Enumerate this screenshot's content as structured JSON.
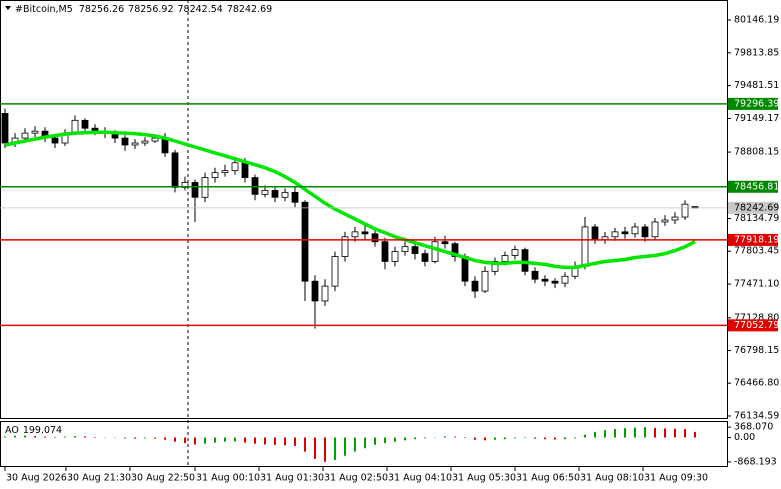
{
  "chart_data": [
    {
      "type": "candlestick",
      "title": "#Bitcoin,M5",
      "xticks": [
        {
          "value": 0,
          "label": "30 Aug 2026"
        },
        {
          "value": 6.1,
          "label": "30 Aug 21:30"
        },
        {
          "value": 12.5,
          "label": "30 Aug 22:50"
        },
        {
          "value": 19,
          "label": "31 Aug 00:10"
        },
        {
          "value": 25.4,
          "label": "31 Aug 01:30"
        },
        {
          "value": 31.8,
          "label": "31 Aug 02:50"
        },
        {
          "value": 38.2,
          "label": "31 Aug 04:10"
        },
        {
          "value": 44.6,
          "label": "31 Aug 05:30"
        },
        {
          "value": 51,
          "label": "31 Aug 06:50"
        },
        {
          "value": 57.4,
          "label": "31 Aug 08:10"
        },
        {
          "value": 63.8,
          "label": "31 Aug 09:30"
        }
      ],
      "xlim": [
        -0.5,
        72.2
      ],
      "ylim": [
        76114,
        80349
      ],
      "yticks": [
        {
          "value": 80146.19,
          "label": "80146.19"
        },
        {
          "value": 79813.85,
          "label": "79813.85"
        },
        {
          "value": 79481.51,
          "label": "79481.51"
        },
        {
          "value": 79149.17,
          "label": "79149.17"
        },
        {
          "value": 78808.15,
          "label": "78808.15"
        },
        {
          "value": 78134.79,
          "label": "78134.79"
        },
        {
          "value": 77803.45,
          "label": "77803.45"
        },
        {
          "value": 77471.1,
          "label": "77471.10"
        },
        {
          "value": 77128.8,
          "label": "77128.80"
        },
        {
          "value": 76798.15,
          "label": "76798.15"
        },
        {
          "value": 76466.8,
          "label": "76466.80"
        },
        {
          "value": 76134.59,
          "label": "76134.59"
        }
      ],
      "open": [
        79200,
        78900,
        78950,
        79000,
        79020,
        78950,
        78900,
        79000,
        79130,
        79050,
        79020,
        79000,
        78950,
        78880,
        78900,
        78920,
        78950,
        78800,
        78450,
        78500,
        78350,
        78550,
        78600,
        78620,
        78700,
        78550,
        78380,
        78420,
        78350,
        78400,
        78300,
        77500,
        77300,
        77450,
        77750,
        77950,
        78000,
        77980,
        77900,
        77700,
        77800,
        77850,
        77780,
        77700,
        77900,
        77880,
        77750,
        77500,
        77400,
        77600,
        77700,
        77760,
        77820,
        77600,
        77520,
        77500,
        77480,
        77550,
        77650,
        78050,
        77920,
        77950,
        78000,
        77980,
        78050,
        77950,
        78100,
        78120,
        78150,
        78256.26
      ],
      "high": [
        79250,
        79000,
        79050,
        79070,
        79060,
        78990,
        79040,
        79180,
        79150,
        79090,
        79060,
        79030,
        78980,
        78940,
        78960,
        78990,
        79000,
        78830,
        78560,
        78530,
        78600,
        78650,
        78680,
        78760,
        78750,
        78580,
        78470,
        78450,
        78440,
        78450,
        78320,
        77560,
        77520,
        77800,
        78000,
        78050,
        78080,
        78020,
        77940,
        77850,
        77900,
        77880,
        77820,
        77950,
        77960,
        77900,
        77780,
        77550,
        77650,
        77740,
        77800,
        77860,
        77840,
        77640,
        77560,
        77530,
        77590,
        77700,
        78150,
        78080,
        78000,
        78040,
        78050,
        78090,
        78080,
        78140,
        78170,
        78200,
        78320,
        78256.92
      ],
      "low": [
        78850,
        78860,
        78920,
        78960,
        78910,
        78850,
        78870,
        78980,
        79000,
        78980,
        78950,
        78900,
        78820,
        78840,
        78870,
        78900,
        78760,
        78400,
        78420,
        78100,
        78300,
        78500,
        78560,
        78580,
        78500,
        78320,
        78350,
        78300,
        78310,
        78250,
        77300,
        77020,
        77250,
        77400,
        77700,
        77900,
        77920,
        77850,
        77620,
        77650,
        77760,
        77720,
        77650,
        77680,
        77830,
        77700,
        77450,
        77330,
        77380,
        77560,
        77660,
        77720,
        77560,
        77480,
        77450,
        77430,
        77440,
        77520,
        77620,
        77880,
        77880,
        77910,
        77930,
        77940,
        77900,
        77920,
        78060,
        78080,
        78120,
        78242.54
      ],
      "close": [
        78900,
        78950,
        79000,
        79020,
        78950,
        78900,
        79000,
        79130,
        79050,
        79020,
        79000,
        78950,
        78880,
        78900,
        78920,
        78950,
        78800,
        78450,
        78500,
        78350,
        78550,
        78600,
        78620,
        78700,
        78550,
        78380,
        78420,
        78350,
        78400,
        78300,
        77500,
        77300,
        77450,
        77750,
        77950,
        78000,
        77980,
        77900,
        77700,
        77800,
        77850,
        77780,
        77700,
        77900,
        77880,
        77750,
        77500,
        77400,
        77600,
        77700,
        77760,
        77820,
        77600,
        77520,
        77500,
        77480,
        77550,
        77650,
        78050,
        77920,
        77950,
        78000,
        77980,
        78050,
        77950,
        78100,
        78120,
        78150,
        78280,
        78242.69
      ],
      "ma": {
        "color": "#00e600",
        "values": [
          78880,
          78900,
          78920,
          78940,
          78960,
          78975,
          78990,
          79000,
          79005,
          79010,
          79010,
          79005,
          79000,
          78995,
          78985,
          78970,
          78950,
          78920,
          78890,
          78860,
          78830,
          78800,
          78770,
          78740,
          78710,
          78680,
          78650,
          78610,
          78560,
          78500,
          78430,
          78360,
          78290,
          78230,
          78180,
          78130,
          78080,
          78030,
          77990,
          77950,
          77920,
          77890,
          77860,
          77830,
          77800,
          77770,
          77740,
          77710,
          77690,
          77680,
          77680,
          77690,
          77690,
          77680,
          77670,
          77650,
          77640,
          77640,
          77660,
          77680,
          77700,
          77710,
          77720,
          77740,
          77750,
          77760,
          77780,
          77810,
          77850,
          77900
        ]
      },
      "levels": [
        {
          "value": 79296.39,
          "color": "#008800"
        },
        {
          "value": 78456.81,
          "color": "#008800"
        },
        {
          "value": 77918.19,
          "color": "#e00000"
        },
        {
          "value": 77052.79,
          "color": "#e00000"
        }
      ]
    },
    {
      "type": "histogram",
      "name": "AO",
      "ylim": [
        -1013,
        586
      ],
      "yticks": [
        {
          "value": 368.07,
          "label": "368.070"
        },
        {
          "value": 0,
          "label": "0.00"
        },
        -868.193
      ],
      "up_color": "#00a000",
      "down_color": "#e00000",
      "values": [
        40,
        60,
        70,
        50,
        30,
        20,
        30,
        50,
        40,
        20,
        10,
        -10,
        -30,
        -40,
        -30,
        -40,
        -80,
        -150,
        -200,
        -250,
        -220,
        -180,
        -150,
        -140,
        -180,
        -220,
        -250,
        -260,
        -280,
        -300,
        -500,
        -760,
        -868,
        -800,
        -650,
        -500,
        -380,
        -260,
        -200,
        -150,
        -100,
        -60,
        -30,
        10,
        40,
        30,
        -20,
        -80,
        -100,
        -80,
        -60,
        -30,
        -20,
        -40,
        -60,
        -70,
        -60,
        -30,
        100,
        200,
        260,
        300,
        330,
        350,
        368,
        340,
        320,
        310,
        300,
        199.074
      ]
    }
  ]
}
